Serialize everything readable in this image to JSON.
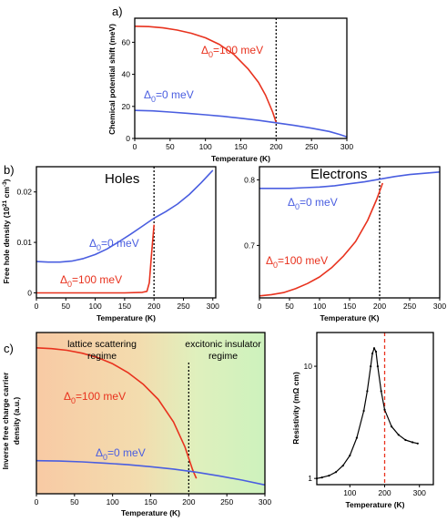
{
  "figure": {
    "panel_labels": {
      "a": "a)",
      "b": "b)",
      "c": "c)"
    }
  },
  "colors": {
    "red": "#e8321e",
    "blue": "#4a5ee0",
    "black": "#000000",
    "dashed_red": "#e8321e"
  },
  "chart_data": [
    {
      "id": "a",
      "type": "line",
      "xlabel": "Temperature (K)",
      "ylabel": "Chemical potential shift (meV)",
      "xlim": [
        0,
        300
      ],
      "ylim": [
        0,
        75
      ],
      "xticks": [
        "0",
        "50",
        "100",
        "150",
        "200",
        "250",
        "300"
      ],
      "yticks": [
        "0",
        "20",
        "40",
        "60"
      ],
      "vline": 200,
      "series": [
        {
          "name": "Δ0=100 meV",
          "label_main": "Δ",
          "label_sub": "0",
          "label_rest": "=100 meV",
          "color": "red",
          "x": [
            0,
            20,
            40,
            60,
            80,
            100,
            120,
            140,
            160,
            175,
            185,
            195,
            200
          ],
          "y": [
            70,
            69.8,
            69,
            67.6,
            65.6,
            62.8,
            58.6,
            52.5,
            43.5,
            35,
            27,
            16.5,
            10
          ]
        },
        {
          "name": "Δ0=0 meV",
          "label_main": "Δ",
          "label_sub": "0",
          "label_rest": "=0 meV",
          "color": "blue",
          "x": [
            0,
            25,
            50,
            75,
            100,
            125,
            150,
            175,
            200,
            225,
            250,
            275,
            290,
            300
          ],
          "y": [
            17.5,
            17.2,
            16.5,
            15.7,
            14.8,
            13.8,
            12.6,
            11.3,
            9.8,
            8.2,
            6.4,
            4.4,
            2.5,
            1
          ]
        }
      ]
    },
    {
      "id": "b-holes",
      "type": "line",
      "title": "Holes",
      "xlabel": "Temperature (K)",
      "ylabel": "Free hole density (10²¹ cm⁻³)",
      "ylabel_main": "Free hole  density (10",
      "ylabel_sup1": "21",
      "ylabel_mid": " cm",
      "ylabel_sup2": "-3",
      "ylabel_end": ")",
      "xlim": [
        0,
        305
      ],
      "ylim": [
        -0.001,
        0.025
      ],
      "xticks": [
        "0",
        "50",
        "100",
        "150",
        "200",
        "250",
        "300"
      ],
      "yticks": [
        "0",
        "0.01",
        "0.02"
      ],
      "vline": 200,
      "series": [
        {
          "name": "Δ0=0 meV",
          "label_main": "Δ",
          "label_sub": "0",
          "label_rest": "=0 meV",
          "color": "blue",
          "x": [
            0,
            20,
            40,
            60,
            80,
            100,
            120,
            140,
            160,
            180,
            200,
            220,
            240,
            260,
            280,
            300
          ],
          "y": [
            0.0062,
            0.0061,
            0.0061,
            0.0063,
            0.0068,
            0.0076,
            0.0087,
            0.0101,
            0.0116,
            0.0132,
            0.0148,
            0.0161,
            0.0176,
            0.0195,
            0.0218,
            0.0243
          ]
        },
        {
          "name": "Δ0=100 meV",
          "label_main": "Δ",
          "label_sub": "0",
          "label_rest": "=100 meV",
          "color": "red",
          "x": [
            0,
            50,
            100,
            150,
            180,
            188,
            192,
            196,
            200
          ],
          "y": [
            0,
            0,
            0,
            0,
            0.0001,
            0.0003,
            0.002,
            0.008,
            0.0135
          ]
        }
      ]
    },
    {
      "id": "b-electrons",
      "type": "line",
      "title": "Electrons",
      "xlabel": "Temperature (K)",
      "xlim": [
        0,
        300
      ],
      "ylim": [
        0.62,
        0.82
      ],
      "xticks": [
        "0",
        "50",
        "100",
        "150",
        "200",
        "250",
        "300"
      ],
      "yticks": [
        "0.7",
        "0.8"
      ],
      "vline": 200,
      "series": [
        {
          "name": "Δ0=0 meV",
          "label_main": "Δ",
          "label_sub": "0",
          "label_rest": "=0 meV",
          "color": "blue",
          "x": [
            0,
            25,
            50,
            75,
            100,
            125,
            150,
            175,
            200,
            225,
            250,
            275,
            300
          ],
          "y": [
            0.787,
            0.787,
            0.787,
            0.788,
            0.789,
            0.791,
            0.794,
            0.797,
            0.801,
            0.805,
            0.808,
            0.81,
            0.812
          ]
        },
        {
          "name": "Δ0=100 meV",
          "label_main": "Δ",
          "label_sub": "0",
          "label_rest": "=100 meV",
          "color": "red",
          "x": [
            0,
            20,
            40,
            60,
            80,
            100,
            120,
            140,
            160,
            180,
            195,
            205
          ],
          "y": [
            0.623,
            0.625,
            0.628,
            0.634,
            0.642,
            0.652,
            0.666,
            0.684,
            0.706,
            0.738,
            0.77,
            0.795
          ]
        }
      ]
    },
    {
      "id": "c-left",
      "type": "line",
      "xlabel": "Temperature (K)",
      "ylabel": "Inverse free charge carrier density (a.u.)",
      "ylabel_line1": "Inverse free charge carrier",
      "ylabel_line2": "density (a.u.)",
      "xlim": [
        0,
        300
      ],
      "ylim": [
        0,
        1
      ],
      "xticks": [
        "0",
        "50",
        "100",
        "150",
        "200",
        "250",
        "300"
      ],
      "vline": 200,
      "regions": [
        {
          "line1": "lattice scattering",
          "line2": "regime"
        },
        {
          "line1": "excitonic insulator",
          "line2": "regime"
        }
      ],
      "series": [
        {
          "name": "Δ0=100 meV",
          "label_main": "Δ",
          "label_sub": "0",
          "label_rest": "=100 meV",
          "color": "red",
          "x": [
            0,
            20,
            40,
            60,
            80,
            100,
            120,
            140,
            160,
            180,
            195,
            205,
            210
          ],
          "y": [
            0.905,
            0.9,
            0.89,
            0.872,
            0.845,
            0.806,
            0.752,
            0.68,
            0.585,
            0.445,
            0.29,
            0.15,
            0.095
          ]
        },
        {
          "name": "Δ0=0 meV",
          "label_main": "Δ",
          "label_sub": "0",
          "label_rest": "=0 meV",
          "color": "blue",
          "x": [
            0,
            30,
            60,
            90,
            120,
            150,
            180,
            210,
            240,
            270,
            300
          ],
          "y": [
            0.205,
            0.203,
            0.198,
            0.19,
            0.18,
            0.168,
            0.153,
            0.134,
            0.111,
            0.085,
            0.055
          ]
        }
      ]
    },
    {
      "id": "c-right",
      "type": "scatter",
      "xlabel": "Temperature (K)",
      "ylabel": "Resistivity (mΩ cm)",
      "xlim": [
        5,
        340
      ],
      "ylog": true,
      "ylim": [
        0.88,
        20
      ],
      "xticks": [
        "100",
        "200",
        "300"
      ],
      "yticks": [
        "1",
        "10"
      ],
      "vline": 200,
      "series": [
        {
          "name": "resistivity",
          "color": "black",
          "x": [
            5,
            20,
            40,
            60,
            80,
            100,
            120,
            140,
            150,
            160,
            165,
            170,
            175,
            180,
            190,
            200,
            220,
            240,
            260,
            280,
            295
          ],
          "y": [
            1.0,
            1.02,
            1.06,
            1.14,
            1.3,
            1.6,
            2.3,
            4.0,
            6.0,
            10.0,
            13.0,
            14.5,
            13.5,
            10.0,
            6.0,
            4.1,
            2.9,
            2.45,
            2.2,
            2.1,
            2.05
          ]
        }
      ]
    }
  ]
}
